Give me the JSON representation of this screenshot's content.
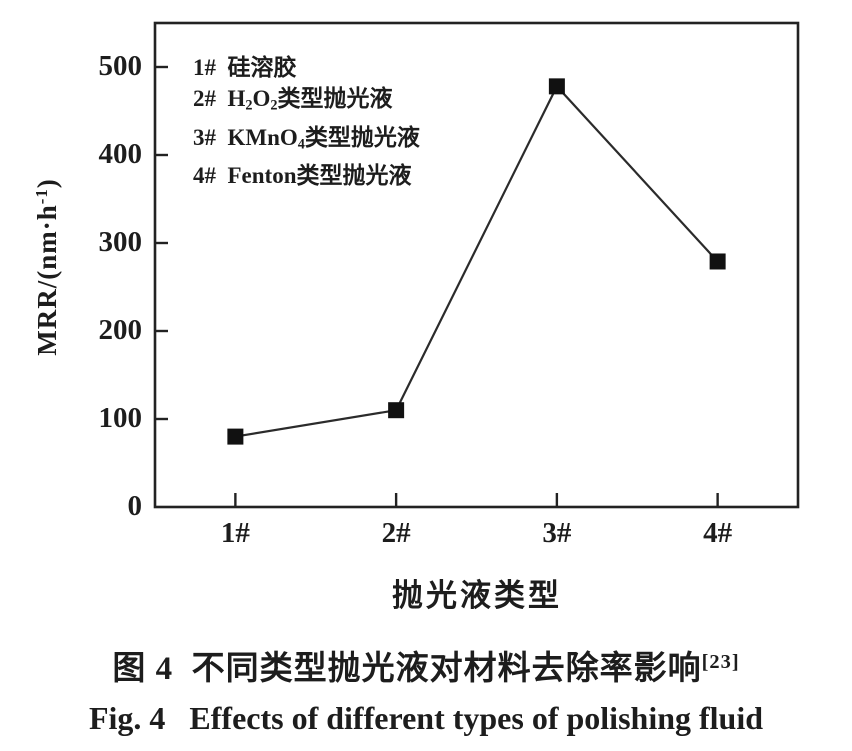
{
  "chart_data": {
    "type": "line",
    "categories": [
      "1#",
      "2#",
      "3#",
      "4#"
    ],
    "values": [
      80,
      110,
      478,
      279
    ],
    "title": "",
    "xlabel": "抛光液类型",
    "ylabel": "MRR/(nm·h⁻¹)",
    "ylabel_parts": [
      {
        "t": "MRR/(nm·h"
      },
      {
        "t": "-1",
        "sup": true
      },
      {
        "t": ")"
      }
    ],
    "ylim": [
      0,
      550
    ],
    "yticks": [
      0,
      100,
      200,
      300,
      400,
      500
    ],
    "grid": false,
    "marker": "square",
    "legend_position": "inside-top-left",
    "legend_items": [
      "1#  硅溶胶",
      "2#  H2O2类型抛光液",
      "3#  KMnO4类型抛光液",
      "4#  Fenton类型抛光液"
    ],
    "legend_items_parts": [
      [
        {
          "t": "1#  硅溶胶"
        }
      ],
      [
        {
          "t": "2#  H"
        },
        {
          "t": "2",
          "sub": true
        },
        {
          "t": "O"
        },
        {
          "t": "2",
          "sub": true
        },
        {
          "t": "类型抛光液"
        }
      ],
      [
        {
          "t": "3#  KMnO"
        },
        {
          "t": "4",
          "sub": true
        },
        {
          "t": "类型抛光液"
        }
      ],
      [
        {
          "t": "4#  Fenton类型抛光液"
        }
      ]
    ],
    "colors": {
      "line": "#2b2b2b",
      "marker": "#111111",
      "axis": "#222222",
      "text": "#1d1d1d"
    }
  },
  "figure": {
    "captions": {
      "zh_parts": [
        {
          "t": "图 4  不同类型抛光液对材料去除率影响"
        },
        {
          "t": "[23]",
          "sup": true
        }
      ],
      "zh": "图 4  不同类型抛光液对材料去除率影响[23]",
      "en": "Fig. 4   Effects of different types of polishing fluid"
    }
  }
}
